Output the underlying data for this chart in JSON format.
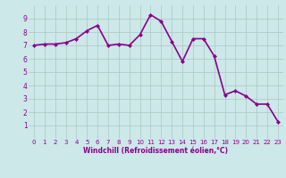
{
  "x": [
    0,
    1,
    2,
    3,
    4,
    5,
    6,
    7,
    8,
    9,
    10,
    11,
    12,
    13,
    14,
    15,
    16,
    17,
    18,
    19,
    20,
    21,
    22,
    23
  ],
  "y": [
    7.0,
    7.1,
    7.1,
    7.2,
    7.5,
    8.1,
    8.5,
    7.0,
    7.1,
    7.0,
    7.8,
    9.3,
    8.8,
    7.3,
    5.8,
    7.5,
    7.5,
    6.2,
    3.3,
    3.6,
    3.2,
    2.6,
    2.6,
    1.3
  ],
  "line_color": "#8B008B",
  "marker": "D",
  "marker_size": 2.0,
  "bg_color": "#cce8e8",
  "grid_color": "#b0c8c8",
  "xlabel": "Windchill (Refroidissement éolien,°C)",
  "xlabel_color": "#8B008B",
  "tick_color": "#8B008B",
  "ylim": [
    0,
    10
  ],
  "xlim": [
    -0.5,
    23.5
  ],
  "yticks": [
    1,
    2,
    3,
    4,
    5,
    6,
    7,
    8,
    9
  ],
  "xticks": [
    0,
    1,
    2,
    3,
    4,
    5,
    6,
    7,
    8,
    9,
    10,
    11,
    12,
    13,
    14,
    15,
    16,
    17,
    18,
    19,
    20,
    21,
    22,
    23
  ],
  "linewidth": 1.2,
  "tick_fontsize": 5.0,
  "xlabel_fontsize": 5.5,
  "ytick_fontsize": 5.5
}
